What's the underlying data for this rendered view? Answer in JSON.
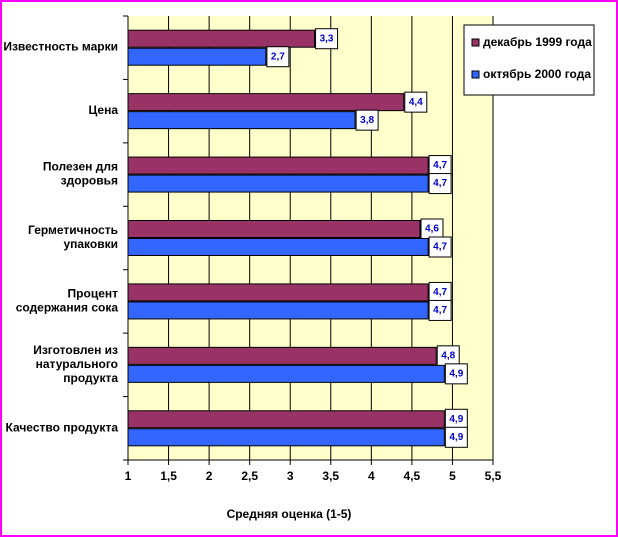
{
  "chart_data": {
    "type": "bar",
    "orientation": "horizontal",
    "categories": [
      "Известность марки",
      "Цена",
      "Полезен для здоровья",
      "Герметичность упаковки",
      "Процент содержания сока",
      "Изготовлен из натурального продукта",
      "Качество продукта"
    ],
    "category_label_lines": [
      [
        "Известность марки"
      ],
      [
        "Цена"
      ],
      [
        "Полезен для",
        "здоровья"
      ],
      [
        "Герметичность",
        "упаковки"
      ],
      [
        "Процент",
        "содержания сока"
      ],
      [
        "Изготовлен из",
        "натурального",
        "продукта"
      ],
      [
        "Качество продукта"
      ]
    ],
    "series": [
      {
        "name": "декабрь 1999 года",
        "color": "#993366",
        "values": [
          3.3,
          4.4,
          4.7,
          4.6,
          4.7,
          4.8,
          4.9
        ],
        "labels": [
          "3,3",
          "4,4",
          "4,7",
          "4,6",
          "4,7",
          "4,8",
          "4,9"
        ]
      },
      {
        "name": "октябрь 2000 года",
        "color": "#3366ff",
        "values": [
          2.7,
          3.8,
          4.7,
          4.7,
          4.7,
          4.9,
          4.9
        ],
        "labels": [
          "2,7",
          "3,8",
          "4,7",
          "4,7",
          "4,7",
          "4,9",
          "4,9"
        ]
      }
    ],
    "xlim": [
      1,
      5.5
    ],
    "xticks": [
      1,
      1.5,
      2,
      2.5,
      3,
      3.5,
      4,
      4.5,
      5,
      5.5
    ],
    "xtick_labels": [
      "1",
      "1,5",
      "2",
      "2,5",
      "3",
      "3,5",
      "4",
      "4,5",
      "5",
      "5,5"
    ],
    "xlabel": "Средняя оценка (1-5)",
    "ylabel": "",
    "title": "",
    "grid": true,
    "legend_position": "top-right",
    "plot_background": "#ffffcc",
    "border_color": "#ff00ff"
  }
}
